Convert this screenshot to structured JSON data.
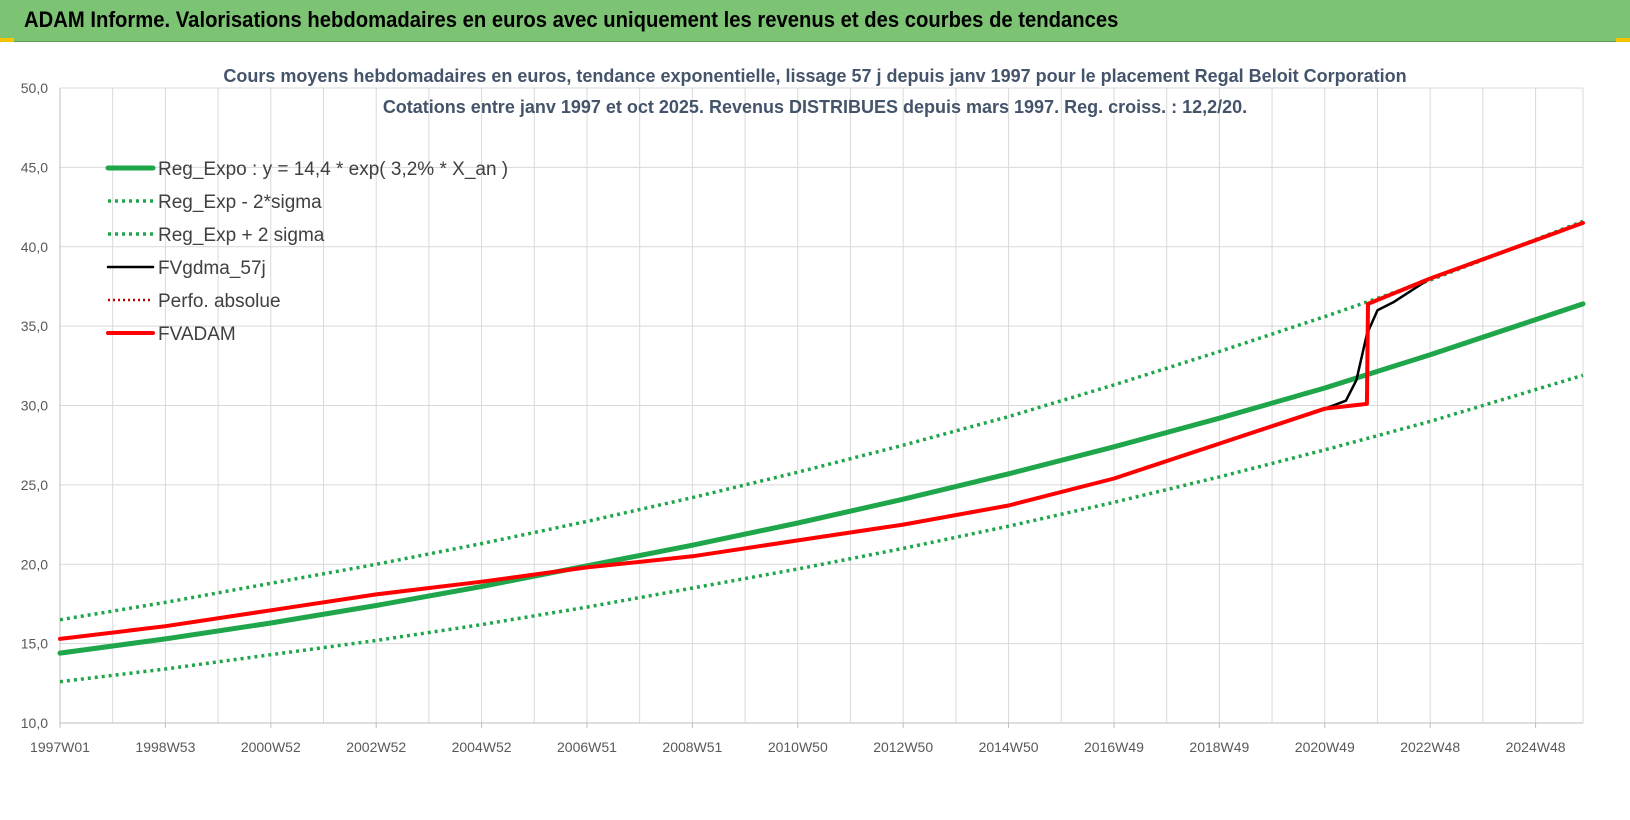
{
  "header": {
    "title": "ADAM Informe. Valorisations hebdomadaires en euros avec uniquement les revenus et des courbes de tendances"
  },
  "colors": {
    "header_bg": "#7dc374",
    "reg_green": "#1fa64a",
    "fvadam_red": "#ff0000",
    "fvgdma_black": "#000000",
    "perfo_dotted_red": "#c00000",
    "grid": "#d9d9d9",
    "title_text": "#44546a"
  },
  "chart_data": {
    "type": "line",
    "title": "Cours moyens hebdomadaires en euros, tendance exponentielle, lissage 57 j depuis janv 1997 pour le placement Regal Beloit Corporation",
    "subtitle": "Cotations entre janv 1997 et oct 2025. Revenus DISTRIBUES depuis mars 1997. Reg. croiss. : 12,2/20.",
    "xlabel": "",
    "ylabel": "",
    "ylim": [
      10,
      50
    ],
    "yticks": [
      "10,0",
      "15,0",
      "20,0",
      "25,0",
      "30,0",
      "35,0",
      "40,0",
      "45,0",
      "50,0"
    ],
    "xlim": [
      1997.0,
      2025.9
    ],
    "xticks": [
      {
        "label": "1997W01",
        "t": 1997.0
      },
      {
        "label": "1998W53",
        "t": 1999.0
      },
      {
        "label": "2000W52",
        "t": 2001.0
      },
      {
        "label": "2002W52",
        "t": 2003.0
      },
      {
        "label": "2004W52",
        "t": 2005.0
      },
      {
        "label": "2006W51",
        "t": 2007.0
      },
      {
        "label": "2008W51",
        "t": 2009.0
      },
      {
        "label": "2010W50",
        "t": 2011.0
      },
      {
        "label": "2012W50",
        "t": 2013.0
      },
      {
        "label": "2014W50",
        "t": 2015.0
      },
      {
        "label": "2016W49",
        "t": 2017.0
      },
      {
        "label": "2018W49",
        "t": 2019.0
      },
      {
        "label": "2020W49",
        "t": 2021.0
      },
      {
        "label": "2022W48",
        "t": 2023.0
      },
      {
        "label": "2024W48",
        "t": 2025.0
      }
    ],
    "grid": true,
    "legend_position": "top-left",
    "series": [
      {
        "name": "Reg_Expo : y = 14,4 * exp( 3,2% *  X_an )",
        "style": "solid-thick",
        "color": "#1fa64a",
        "x": [
          1997.0,
          1999.0,
          2001.0,
          2003.0,
          2005.0,
          2007.0,
          2009.0,
          2011.0,
          2013.0,
          2015.0,
          2017.0,
          2019.0,
          2021.0,
          2023.0,
          2025.9
        ],
        "y": [
          14.4,
          15.3,
          16.3,
          17.4,
          18.6,
          19.9,
          21.2,
          22.6,
          24.1,
          25.7,
          27.4,
          29.2,
          31.1,
          33.2,
          36.4
        ]
      },
      {
        "name": "Reg_Exp - 2*sigma",
        "style": "dotted",
        "color": "#1fa64a",
        "x": [
          1997.0,
          1999.0,
          2001.0,
          2003.0,
          2005.0,
          2007.0,
          2009.0,
          2011.0,
          2013.0,
          2015.0,
          2017.0,
          2019.0,
          2021.0,
          2023.0,
          2025.9
        ],
        "y": [
          12.6,
          13.4,
          14.3,
          15.2,
          16.2,
          17.3,
          18.5,
          19.7,
          21.0,
          22.4,
          23.9,
          25.5,
          27.2,
          29.0,
          31.9
        ]
      },
      {
        "name": "Reg_Exp + 2 sigma",
        "style": "dotted",
        "color": "#1fa64a",
        "x": [
          1997.0,
          1999.0,
          2001.0,
          2003.0,
          2005.0,
          2007.0,
          2009.0,
          2011.0,
          2013.0,
          2015.0,
          2017.0,
          2019.0,
          2021.0,
          2023.0,
          2025.9
        ],
        "y": [
          16.5,
          17.6,
          18.8,
          20.0,
          21.3,
          22.7,
          24.2,
          25.8,
          27.5,
          29.3,
          31.3,
          33.4,
          35.6,
          37.9,
          41.6
        ]
      },
      {
        "name": "FVgdma_57j",
        "style": "solid",
        "color": "#000000",
        "x": [
          1997.0,
          1999.0,
          2001.0,
          2003.0,
          2005.0,
          2007.0,
          2009.0,
          2011.0,
          2013.0,
          2015.0,
          2017.0,
          2019.0,
          2021.0,
          2021.4,
          2021.6,
          2021.8,
          2022.0,
          2022.3,
          2023.0,
          2025.9
        ],
        "y": [
          15.3,
          16.1,
          17.1,
          18.1,
          18.9,
          19.8,
          20.5,
          21.5,
          22.5,
          23.7,
          25.4,
          27.6,
          29.8,
          30.3,
          31.6,
          34.5,
          36.0,
          36.5,
          38.0,
          41.5
        ]
      },
      {
        "name": "Perfo. absolue",
        "style": "dotted",
        "color": "#c00000",
        "x": [
          1997.0,
          1999.0,
          2001.0,
          2003.0,
          2005.0,
          2007.0,
          2009.0,
          2011.0,
          2013.0,
          2015.0,
          2017.0,
          2019.0,
          2021.0,
          2021.8,
          2021.82,
          2023.0,
          2025.9
        ],
        "y": [
          15.3,
          16.1,
          17.1,
          18.1,
          18.9,
          19.8,
          20.5,
          21.5,
          22.5,
          23.7,
          25.4,
          27.6,
          29.8,
          30.1,
          36.4,
          38.0,
          41.5
        ]
      },
      {
        "name": "FVADAM",
        "style": "solid-thick",
        "color": "#ff0000",
        "x": [
          1997.0,
          1999.0,
          2001.0,
          2003.0,
          2005.0,
          2007.0,
          2009.0,
          2011.0,
          2013.0,
          2015.0,
          2017.0,
          2019.0,
          2021.0,
          2021.8,
          2021.82,
          2023.0,
          2025.9
        ],
        "y": [
          15.3,
          16.1,
          17.1,
          18.1,
          18.9,
          19.8,
          20.5,
          21.5,
          22.5,
          23.7,
          25.4,
          27.6,
          29.8,
          30.1,
          36.4,
          38.0,
          41.5
        ]
      }
    ]
  }
}
